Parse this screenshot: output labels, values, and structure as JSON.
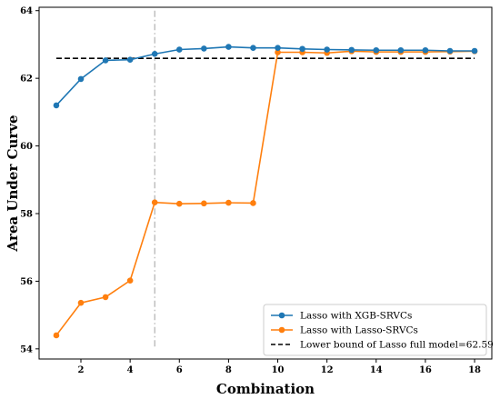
{
  "chart_data": {
    "type": "line",
    "xlabel": "Combination",
    "ylabel": "Area Under Curve",
    "xlim": [
      0.3,
      18.7
    ],
    "ylim": [
      53.7,
      64.1
    ],
    "xticks": [
      2,
      4,
      6,
      8,
      10,
      12,
      14,
      16,
      18
    ],
    "yticks": [
      54,
      56,
      58,
      60,
      62,
      64
    ],
    "grid": false,
    "legend_position": "bottom-right",
    "x": [
      1,
      2,
      3,
      4,
      5,
      6,
      7,
      8,
      9,
      10,
      11,
      12,
      13,
      14,
      15,
      16,
      17,
      18
    ],
    "series": [
      {
        "name": "Lasso with XGB-SRVCs",
        "color": "#1f77b4",
        "style": "solid-marker",
        "values": [
          61.2,
          61.98,
          62.53,
          62.55,
          62.72,
          62.85,
          62.88,
          62.93,
          62.9,
          62.9,
          62.87,
          62.85,
          62.84,
          62.83,
          62.83,
          62.83,
          62.81,
          62.81
        ]
      },
      {
        "name": "Lasso with Lasso-SRVCs",
        "color": "#ff7f0e",
        "style": "solid-marker",
        "values": [
          54.4,
          55.36,
          55.53,
          56.02,
          58.33,
          58.29,
          58.3,
          58.32,
          58.31,
          62.77,
          62.77,
          62.75,
          62.8,
          62.78,
          62.78,
          62.78,
          62.79,
          62.8
        ]
      }
    ],
    "reference_line": {
      "name": "Lower bound of Lasso full model=62.59",
      "value": 62.59,
      "x_range": [
        1,
        18
      ],
      "color": "#000000",
      "style": "dashed"
    },
    "vertical_line": {
      "x": 5,
      "y_range": [
        54.0,
        64.0
      ],
      "color": "#b0b0b0",
      "style": "dashdot"
    }
  }
}
